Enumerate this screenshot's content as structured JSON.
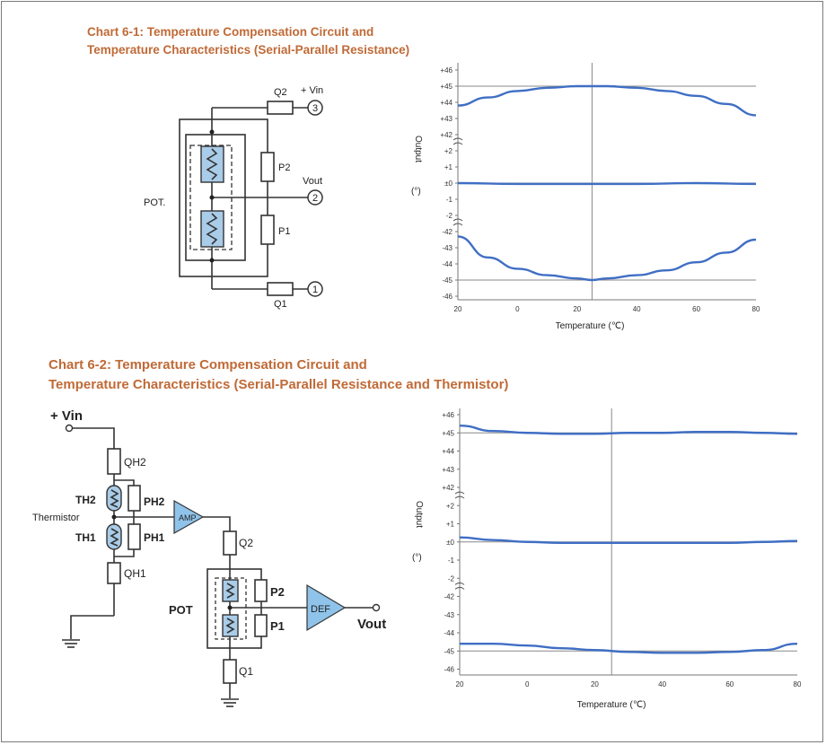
{
  "chart1": {
    "title_line1": "Chart 6-1: Temperature Compensation Circuit and",
    "title_line2": "Temperature Characteristics (Serial-Parallel Resistance)",
    "circuit": {
      "q2": "Q2",
      "vin": "+ Vin",
      "node3": "3",
      "p2": "P2",
      "vout": "Vout",
      "node2": "2",
      "pot": "POT.",
      "p1": "P1",
      "q1": "Q1",
      "node1": "1"
    }
  },
  "chart2": {
    "title_line1": "Chart 6-2: Temperature Compensation Circuit and",
    "title_line2": "Temperature Characteristics (Serial-Parallel Resistance and Thermistor)",
    "circuit": {
      "vin": "+ Vin",
      "qh2": "QH2",
      "th2": "TH2",
      "ph2": "PH2",
      "thermistor": "Thermistor",
      "th1": "TH1",
      "ph1": "PH1",
      "qh1": "QH1",
      "amp": "AMP",
      "q2": "Q2",
      "pot": "POT",
      "p2": "P2",
      "p1": "P1",
      "def": "DEF",
      "vout": "Vout",
      "q1": "Q1"
    }
  },
  "chart_data": [
    {
      "type": "line",
      "xlabel": "Temperature (℃)",
      "ylabel": "Output",
      "yunit": "(°)",
      "x_ticks": [
        "20",
        "0",
        "20",
        "40",
        "60",
        "80"
      ],
      "y_ticks": [
        "+46",
        "+45",
        "+44",
        "+43",
        "+42",
        "+2",
        "+1",
        "±0",
        "-1",
        "-2",
        "-42",
        "-43",
        "-44",
        "-45",
        "-46"
      ],
      "reference_x": 25,
      "reference_y": [
        "+45",
        "±0",
        "-45"
      ],
      "series": [
        {
          "x": [
            -20,
            -10,
            0,
            10,
            20,
            25,
            30,
            40,
            50,
            60,
            70,
            80
          ],
          "y": [
            43.8,
            44.3,
            44.7,
            44.9,
            45.0,
            45.0,
            45.0,
            44.9,
            44.7,
            44.4,
            43.9,
            43.2
          ]
        },
        {
          "x": [
            -20,
            0,
            20,
            40,
            60,
            80
          ],
          "y": [
            0.0,
            -0.05,
            -0.05,
            -0.05,
            0.0,
            -0.05
          ]
        },
        {
          "x": [
            -20,
            -10,
            0,
            10,
            20,
            25,
            30,
            40,
            50,
            60,
            70,
            80
          ],
          "y": [
            -42.3,
            -43.6,
            -44.3,
            -44.7,
            -44.9,
            -45.0,
            -44.9,
            -44.7,
            -44.4,
            -43.9,
            -43.3,
            -42.5
          ]
        }
      ]
    },
    {
      "type": "line",
      "xlabel": "Temperature (℃)",
      "ylabel": "Output",
      "yunit": "(°)",
      "x_ticks": [
        "20",
        "0",
        "20",
        "40",
        "60",
        "80"
      ],
      "y_ticks": [
        "+46",
        "+45",
        "+44",
        "+43",
        "+42",
        "+2",
        "+1",
        "±0",
        "-1",
        "-2",
        "-42",
        "-43",
        "-44",
        "-45",
        "-46"
      ],
      "reference_x": 25,
      "reference_y": [
        "+45",
        "±0",
        "-45"
      ],
      "series": [
        {
          "x": [
            -20,
            -10,
            0,
            10,
            20,
            30,
            40,
            50,
            60,
            70,
            80
          ],
          "y": [
            45.4,
            45.1,
            45.0,
            44.95,
            44.95,
            45.0,
            45.0,
            45.05,
            45.05,
            45.0,
            44.95
          ]
        },
        {
          "x": [
            -20,
            -10,
            0,
            10,
            20,
            30,
            40,
            50,
            60,
            70,
            80
          ],
          "y": [
            0.25,
            0.1,
            0.0,
            -0.05,
            -0.05,
            -0.05,
            -0.05,
            -0.05,
            -0.05,
            0.0,
            0.05
          ]
        },
        {
          "x": [
            -20,
            -10,
            0,
            10,
            20,
            30,
            40,
            50,
            60,
            70,
            80
          ],
          "y": [
            -44.6,
            -44.6,
            -44.7,
            -44.85,
            -44.95,
            -45.05,
            -45.1,
            -45.1,
            -45.05,
            -44.95,
            -44.6
          ]
        }
      ]
    }
  ]
}
